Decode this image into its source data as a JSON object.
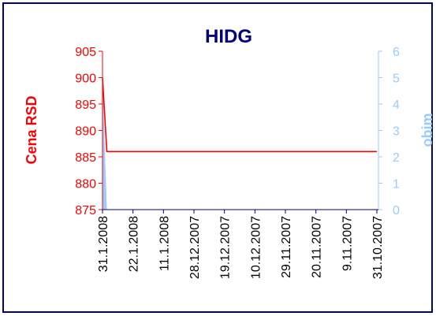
{
  "chart_data": {
    "type": "line",
    "title": "HIDG",
    "ylabel": "Cena RSD",
    "y2label": "obim",
    "categories": [
      "31.1.2008",
      null,
      null,
      null,
      null,
      null,
      null,
      "22.1.2008",
      null,
      null,
      null,
      null,
      null,
      null,
      "11.1.2008",
      null,
      null,
      null,
      null,
      null,
      null,
      "28.12.2007",
      null,
      null,
      null,
      null,
      null,
      null,
      "19.12.2007",
      null,
      null,
      null,
      null,
      null,
      null,
      "10.12.2007",
      null,
      null,
      null,
      null,
      null,
      null,
      "29.11.2007",
      null,
      null,
      null,
      null,
      null,
      null,
      "20.11.2007",
      null,
      null,
      null,
      null,
      null,
      null,
      "9.11.2007",
      null,
      null,
      null,
      null,
      null,
      null,
      "31.10.2007"
    ],
    "series": [
      {
        "name": "Cena RSD",
        "color": "#ff0000",
        "values": [
          900,
          886,
          886,
          886,
          886,
          886,
          886,
          886,
          886,
          886,
          886,
          886,
          886,
          886,
          886,
          886,
          886,
          886,
          886,
          886,
          886,
          886,
          886,
          886,
          886,
          886,
          886,
          886,
          886,
          886,
          886,
          886,
          886,
          886,
          886,
          886,
          886,
          886,
          886,
          886,
          886,
          886,
          886,
          886,
          886,
          886,
          886,
          886,
          886,
          886,
          886,
          886,
          886,
          886,
          886,
          886,
          886,
          886,
          886,
          886,
          886,
          886,
          886,
          886
        ]
      },
      {
        "name": "obim",
        "color": "#99ccff",
        "axis": "y2",
        "kind": "area",
        "values": [
          5,
          0,
          0,
          0,
          0,
          0,
          0,
          0,
          0,
          0,
          0,
          0,
          0,
          0,
          0,
          0,
          0,
          0,
          0,
          0,
          0,
          0,
          0,
          0,
          0,
          0,
          0,
          0,
          0,
          0,
          0,
          0,
          0,
          0,
          0,
          0,
          0,
          0,
          0,
          0,
          0,
          0,
          0,
          0,
          0,
          0,
          0,
          0,
          0,
          0,
          0,
          0,
          0,
          0,
          0,
          0,
          0,
          0,
          0,
          0,
          0,
          0,
          0,
          0
        ]
      }
    ],
    "ylim": [
      875,
      905
    ],
    "yticks": [
      875,
      880,
      885,
      890,
      895,
      900,
      905
    ],
    "y2lim": [
      0,
      6
    ],
    "y2ticks": [
      0,
      1,
      2,
      3,
      4,
      5,
      6
    ]
  }
}
